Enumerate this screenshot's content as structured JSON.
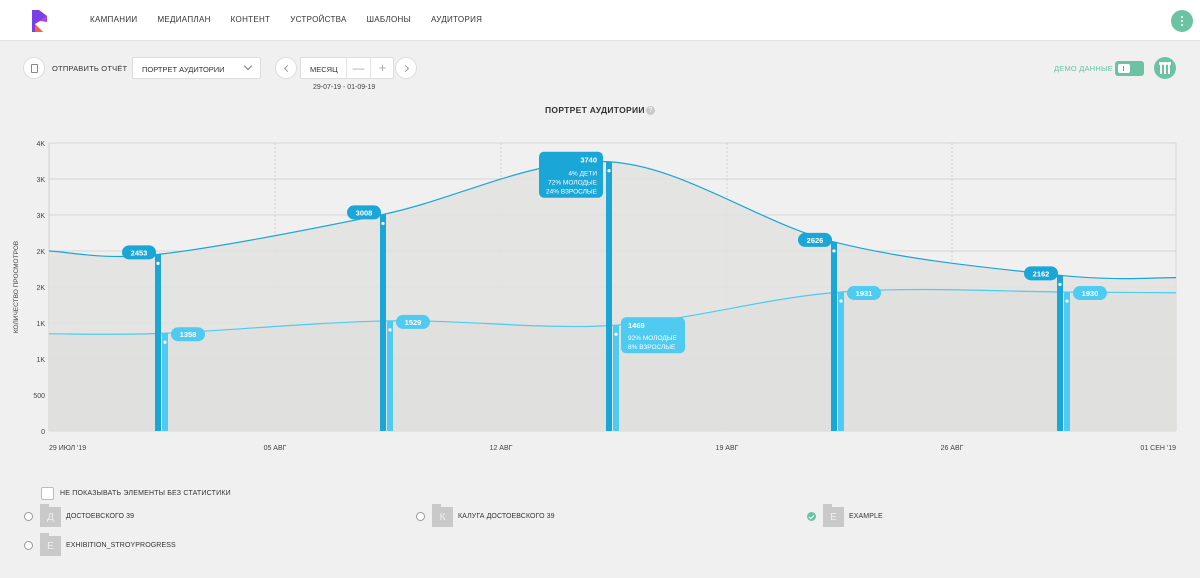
{
  "nav": [
    "КАМПАНИИ",
    "МЕДИАПЛАН",
    "КОНТЕНТ",
    "УСТРОЙСТВА",
    "ШАБЛОНЫ",
    "АУДИТОРИЯ"
  ],
  "toolbar": {
    "send_report": "ОТПРАВИТЬ ОТЧЁТ",
    "report_select": "ПОРТРЕТ АУДИТОРИИ",
    "period": "МЕСЯЦ",
    "minus": "—",
    "plus": "+",
    "date_range": "29-07-19 - 01-09-19",
    "demo_label": "ДЕМО ДАННЫЕ"
  },
  "chart_title": "ПОРТРЕТ АУДИТОРИИ",
  "help_glyph": "?",
  "chart_data": {
    "type": "area",
    "ylabel": "КОЛИЧЕСТВО ПРОСМОТРОВ",
    "y_ticks": [
      "4K",
      "3K",
      "3K",
      "2K",
      "2K",
      "1K",
      "1K",
      "500",
      "0"
    ],
    "x_ticks": [
      "29 ИЮЛ '19",
      "05 АВГ",
      "12 АВГ",
      "19 АВГ",
      "26 АВГ",
      "01 СЕН '19"
    ],
    "upper_line": [
      {
        "label": "2453",
        "detail": []
      },
      {
        "label": "3008",
        "detail": []
      },
      {
        "label": "3740",
        "detail": [
          "4% ДЕТИ",
          "72% МОЛОДЫЕ",
          "24% ВЗРОСЛЫЕ"
        ]
      },
      {
        "label": "2626",
        "detail": []
      },
      {
        "label": "2162",
        "detail": []
      }
    ],
    "lower_line": [
      {
        "label": "1358",
        "detail": []
      },
      {
        "label": "1529",
        "detail": []
      },
      {
        "label": "1469",
        "detail": [
          "92% МОЛОДЫЕ",
          "8% ВЗРОСЛЫЕ"
        ]
      },
      {
        "label": "1931",
        "detail": []
      },
      {
        "label": "1930",
        "detail": []
      }
    ],
    "colors": {
      "upper": "#1aa6d6",
      "lower": "#4fcaf0",
      "area": "#e2e3e1"
    },
    "grid": true
  },
  "filter_label": "НЕ ПОКАЗЫВАТЬ ЭЛЕМЕНТЫ БЕЗ СТАТИСТИКИ",
  "devices": [
    {
      "letter": "Д",
      "name": "ДОСТОЕВСКОГО 39",
      "checked": false
    },
    {
      "letter": "К",
      "name": "КАЛУГА ДОСТОЕВСКОГО 39",
      "checked": false
    },
    {
      "letter": "E",
      "name": "EXAMPLE",
      "checked": true
    },
    {
      "letter": "E",
      "name": "EXHIBITION_STROYPROGRESS",
      "checked": false
    }
  ]
}
